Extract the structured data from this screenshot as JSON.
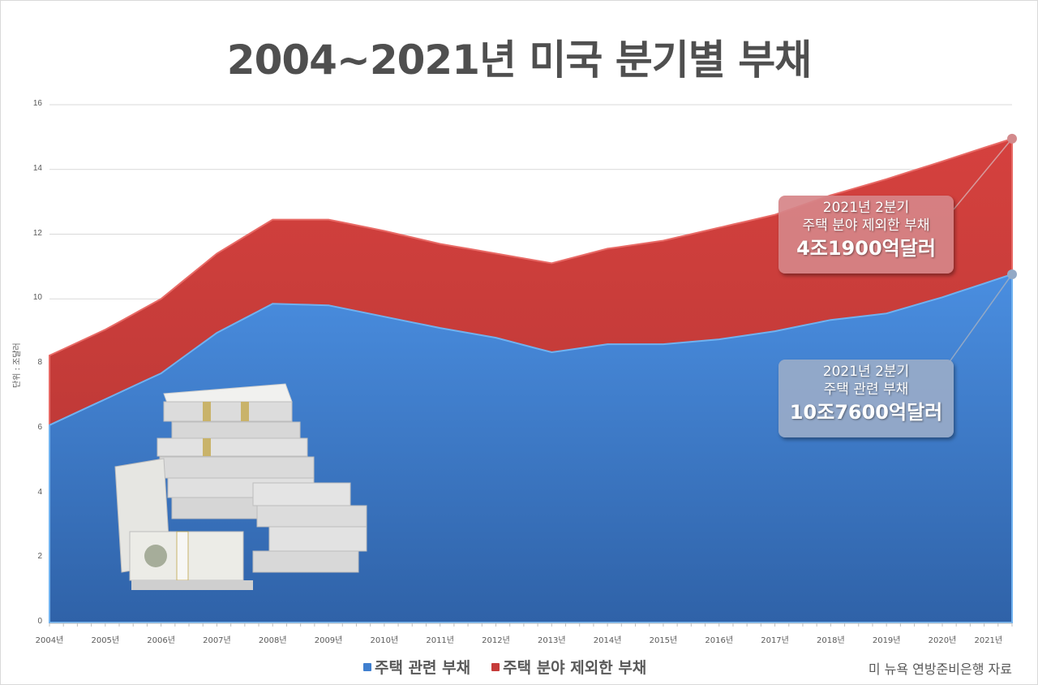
{
  "title": "2004~2021년 미국 분기별 부채",
  "y_unit_label": "단위 : 조달러",
  "y_ticks": [
    "0",
    "2",
    "4",
    "6",
    "8",
    "10",
    "12",
    "14",
    "16"
  ],
  "x_ticks": [
    "2004년",
    "2005년",
    "2006년",
    "2007년",
    "2008년",
    "2009년",
    "2010년",
    "2011년",
    "2012년",
    "2013년",
    "2014년",
    "2015년",
    "2016년",
    "2017년",
    "2018년",
    "2019년",
    "2020년",
    "2021년"
  ],
  "legend": {
    "housing": "주택 관련 부채",
    "non_housing": "주택 분야 제외한 부채"
  },
  "source": "미 뉴욕 연방준비은행 자료",
  "callouts": {
    "non_housing": {
      "line1": "2021년 2분기",
      "line2": "주택 분야 제외한 부채",
      "line3": "4조1900억달러"
    },
    "housing": {
      "line1": "2021년 2분기",
      "line2": "주택 관련 부채",
      "line3": "10조7600억달러"
    }
  },
  "colors": {
    "housing": "#3f7fcf",
    "non_housing": "#c63c3a",
    "title": "#4f4f4f",
    "grid": "#d9d9d9"
  },
  "chart_data": {
    "type": "area",
    "stacked": true,
    "title": "2004~2021년 미국 분기별 부채",
    "xlabel": "",
    "ylabel": "단위 : 조달러",
    "ylim": [
      0,
      16
    ],
    "grid": true,
    "legend_position": "bottom",
    "categories": [
      "2004년",
      "2005년",
      "2006년",
      "2007년",
      "2008년",
      "2009년",
      "2010년",
      "2011년",
      "2012년",
      "2013년",
      "2014년",
      "2015년",
      "2016년",
      "2017년",
      "2018년",
      "2019년",
      "2020년",
      "2021년 2분기"
    ],
    "series": [
      {
        "name": "주택 관련 부채",
        "values": [
          6.1,
          6.9,
          7.7,
          8.95,
          9.85,
          9.8,
          9.45,
          9.1,
          8.8,
          8.35,
          8.6,
          8.6,
          8.75,
          9.0,
          9.35,
          9.55,
          10.05,
          10.76
        ]
      },
      {
        "name": "주택 분야 제외한 부채",
        "values": [
          2.15,
          2.15,
          2.3,
          2.45,
          2.6,
          2.65,
          2.65,
          2.6,
          2.6,
          2.75,
          2.95,
          3.2,
          3.45,
          3.6,
          3.85,
          4.15,
          4.2,
          4.19
        ]
      }
    ],
    "total": [
      8.25,
      9.05,
      10.0,
      11.4,
      12.45,
      12.45,
      12.1,
      11.7,
      11.4,
      11.1,
      11.55,
      11.8,
      12.2,
      12.6,
      13.2,
      13.7,
      14.25,
      14.95
    ],
    "annotations": [
      "2021년 2분기 주택 분야 제외한 부채 4조1900억달러",
      "2021년 2분기 주택 관련 부채 10조7600억달러"
    ]
  }
}
